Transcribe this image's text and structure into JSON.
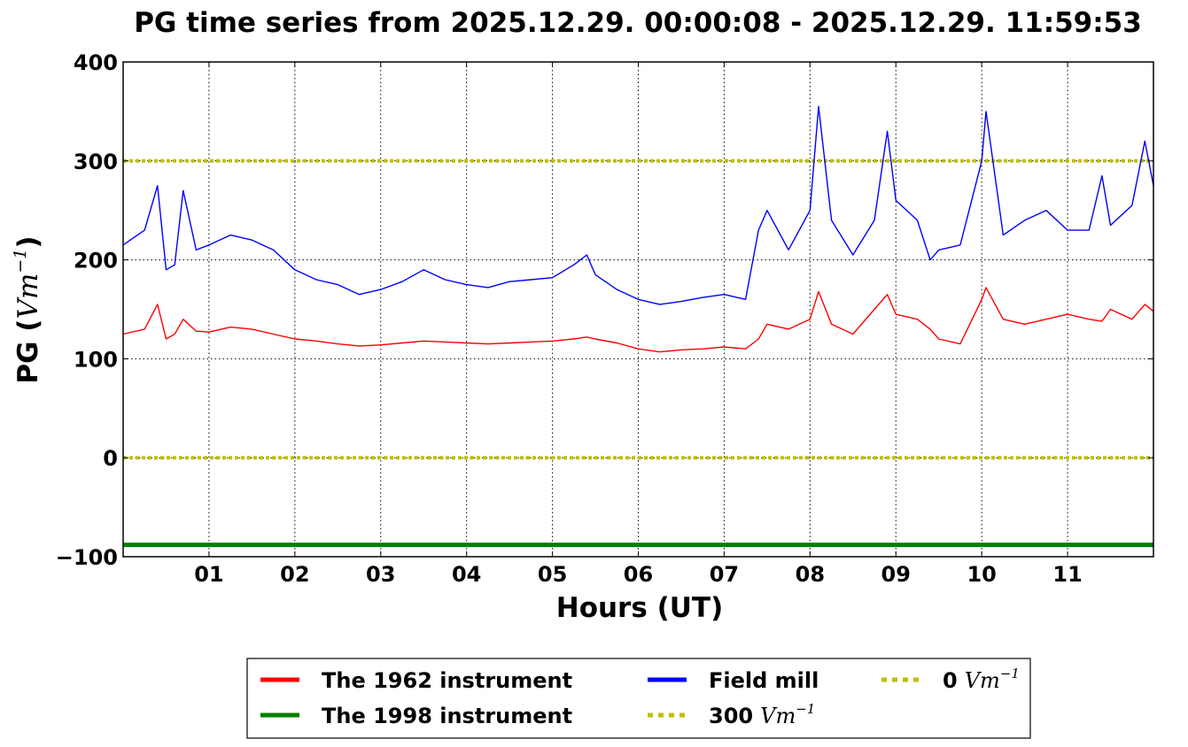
{
  "chart_data": {
    "type": "line",
    "title": "PG time series from 2025.12.29. 00:00:08 - 2025.12.29. 11:59:53",
    "xlabel": "Hours (UT)",
    "ylabel": {
      "text": "PG (",
      "math": "Vm",
      "sup": "−1",
      "close": ")"
    },
    "xlim": [
      0,
      12
    ],
    "ylim": [
      -100,
      400
    ],
    "grid": true,
    "legend_position": "bottom-center, below chart",
    "x_tick_labels": [
      "01",
      "02",
      "03",
      "04",
      "05",
      "06",
      "07",
      "08",
      "09",
      "10",
      "11"
    ],
    "x_ticks": [
      1,
      2,
      3,
      4,
      5,
      6,
      7,
      8,
      9,
      10,
      11
    ],
    "y_tick_labels": [
      "400",
      "300",
      "200",
      "100",
      "0",
      "−100"
    ],
    "y_ticks": [
      400,
      300,
      200,
      100,
      0,
      -100
    ],
    "x": [
      0.0,
      0.25,
      0.4,
      0.5,
      0.6,
      0.7,
      0.85,
      1.0,
      1.25,
      1.5,
      1.75,
      2.0,
      2.25,
      2.5,
      2.75,
      3.0,
      3.25,
      3.5,
      3.75,
      4.0,
      4.25,
      4.5,
      4.75,
      5.0,
      5.25,
      5.4,
      5.5,
      5.75,
      6.0,
      6.25,
      6.5,
      6.75,
      7.0,
      7.25,
      7.4,
      7.5,
      7.75,
      8.0,
      8.1,
      8.25,
      8.5,
      8.75,
      8.9,
      9.0,
      9.25,
      9.4,
      9.5,
      9.75,
      10.0,
      10.05,
      10.25,
      10.5,
      10.75,
      11.0,
      11.25,
      11.4,
      11.5,
      11.75,
      11.9,
      12.0
    ],
    "series": [
      {
        "name": "The 1962 instrument",
        "color": "#ff0000",
        "values": [
          125,
          130,
          155,
          120,
          125,
          140,
          128,
          127,
          132,
          130,
          125,
          120,
          118,
          115,
          113,
          114,
          116,
          118,
          117,
          116,
          115,
          116,
          117,
          118,
          120,
          122,
          120,
          116,
          110,
          107,
          109,
          110,
          112,
          110,
          120,
          135,
          130,
          140,
          168,
          135,
          125,
          150,
          165,
          145,
          140,
          130,
          120,
          115,
          160,
          172,
          140,
          135,
          140,
          145,
          140,
          138,
          150,
          140,
          155,
          148
        ]
      },
      {
        "name": "Field mill",
        "color": "#0000ff",
        "values": [
          215,
          230,
          275,
          190,
          195,
          270,
          210,
          215,
          225,
          220,
          210,
          190,
          180,
          175,
          165,
          170,
          178,
          190,
          180,
          175,
          172,
          178,
          180,
          182,
          195,
          205,
          185,
          170,
          160,
          155,
          158,
          162,
          165,
          160,
          230,
          250,
          210,
          250,
          355,
          240,
          205,
          240,
          330,
          260,
          240,
          200,
          210,
          215,
          300,
          350,
          225,
          240,
          250,
          230,
          230,
          285,
          235,
          255,
          320,
          275
        ]
      },
      {
        "name": "The 1998 instrument",
        "color": "#008000",
        "values": [
          -88,
          -88,
          -88,
          -88,
          -88,
          -88,
          -88,
          -88,
          -88,
          -88,
          -88,
          -88,
          -88,
          -88,
          -88,
          -88,
          -88,
          -88,
          -88,
          -88,
          -88,
          -88,
          -88,
          -88,
          -88,
          -88,
          -88,
          -88,
          -88,
          -88,
          -88,
          -88,
          -88,
          -88,
          -88,
          -88,
          -88,
          -88,
          -88,
          -88,
          -88,
          -88,
          -88,
          -88,
          -88,
          -88,
          -88,
          -88,
          -88,
          -88,
          -88,
          -88,
          -88,
          -88,
          -88,
          -88,
          -88,
          -88,
          -88,
          -88
        ]
      }
    ],
    "reference_lines": [
      {
        "name": "300",
        "math": "Vm",
        "sup": "−1",
        "value": 300,
        "color": "#bfbf00"
      },
      {
        "name": "0",
        "math": "Vm",
        "sup": "−1",
        "value": 0,
        "color": "#bfbf00"
      }
    ],
    "legend": [
      {
        "label": "The 1962 instrument",
        "color": "#ff0000",
        "style": "solid"
      },
      {
        "label": "Field mill",
        "color": "#0000ff",
        "style": "solid"
      },
      {
        "label": "0",
        "math": "Vm",
        "sup": "−1",
        "color": "#bfbf00",
        "style": "dotted"
      },
      {
        "label": "The 1998 instrument",
        "color": "#008000",
        "style": "solid"
      },
      {
        "label": "300",
        "math": "Vm",
        "sup": "−1",
        "color": "#bfbf00",
        "style": "dotted"
      }
    ]
  }
}
